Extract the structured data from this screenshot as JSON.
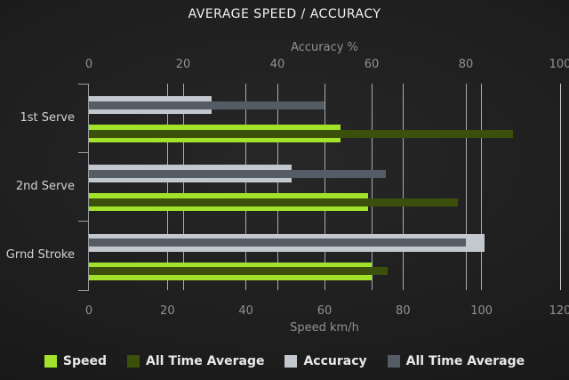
{
  "chart_data": {
    "type": "bar",
    "orientation": "horizontal",
    "title": "AVERAGE SPEED / ACCURACY",
    "categories": [
      "1st Serve",
      "2nd Serve",
      "Grnd Stroke"
    ],
    "axes": {
      "top": {
        "label": "Accuracy %",
        "min": 0,
        "max": 100,
        "ticks": [
          0,
          20,
          40,
          60,
          80,
          100
        ]
      },
      "bottom": {
        "label": "Speed km/h",
        "min": 0,
        "max": 120,
        "ticks": [
          0,
          20,
          40,
          60,
          80,
          100,
          120
        ]
      }
    },
    "series": [
      {
        "name": "Speed",
        "axis": "bottom",
        "role": "current",
        "color": "#a3e22a",
        "values": [
          64,
          71,
          72
        ]
      },
      {
        "name": "All Time Average",
        "axis": "bottom",
        "role": "average",
        "color": "#3b510b",
        "values": [
          108,
          94,
          76
        ]
      },
      {
        "name": "Accuracy",
        "axis": "top",
        "role": "current",
        "color": "#c2c8ce",
        "values": [
          26,
          43,
          84
        ]
      },
      {
        "name": "All Time Average",
        "axis": "top",
        "role": "average",
        "color": "#555c65",
        "values": [
          50,
          63,
          80
        ]
      }
    ],
    "legend": {
      "position": "bottom",
      "items": [
        "Speed",
        "All Time Average",
        "Accuracy",
        "All Time Average"
      ]
    },
    "grid": true,
    "colors": {
      "background_center": "#272727",
      "background_edge": "#121212",
      "gridline": "#ced2d6",
      "axis_line": "#9a9da0",
      "axis_text": "#8d9296",
      "category_text": "#d2d2d2",
      "title_text": "#f2f2f2",
      "legend_text": "#e8e8e8"
    }
  }
}
